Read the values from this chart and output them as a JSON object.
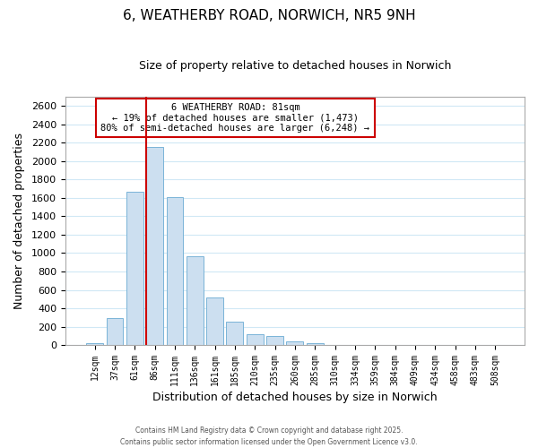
{
  "title": "6, WEATHERBY ROAD, NORWICH, NR5 9NH",
  "subtitle": "Size of property relative to detached houses in Norwich",
  "xlabel": "Distribution of detached houses by size in Norwich",
  "ylabel": "Number of detached properties",
  "categories": [
    "12sqm",
    "37sqm",
    "61sqm",
    "86sqm",
    "111sqm",
    "136sqm",
    "161sqm",
    "185sqm",
    "210sqm",
    "235sqm",
    "260sqm",
    "285sqm",
    "310sqm",
    "334sqm",
    "359sqm",
    "384sqm",
    "409sqm",
    "434sqm",
    "458sqm",
    "483sqm",
    "508sqm"
  ],
  "values": [
    20,
    295,
    1670,
    2150,
    1610,
    965,
    515,
    252,
    120,
    95,
    35,
    20,
    5,
    5,
    5,
    0,
    0,
    0,
    0,
    0,
    0
  ],
  "bar_color": "#ccdff0",
  "bar_edge_color": "#7ab4d8",
  "vline_index": 3,
  "vline_color": "#cc0000",
  "ylim": [
    0,
    2700
  ],
  "yticks": [
    0,
    200,
    400,
    600,
    800,
    1000,
    1200,
    1400,
    1600,
    1800,
    2000,
    2200,
    2400,
    2600
  ],
  "annotation_title": "6 WEATHERBY ROAD: 81sqm",
  "annotation_line1": "← 19% of detached houses are smaller (1,473)",
  "annotation_line2": "80% of semi-detached houses are larger (6,248) →",
  "footer1": "Contains HM Land Registry data © Crown copyright and database right 2025.",
  "footer2": "Contains public sector information licensed under the Open Government Licence v3.0.",
  "title_fontsize": 11,
  "subtitle_fontsize": 9,
  "grid_color": "#d0e8f5"
}
